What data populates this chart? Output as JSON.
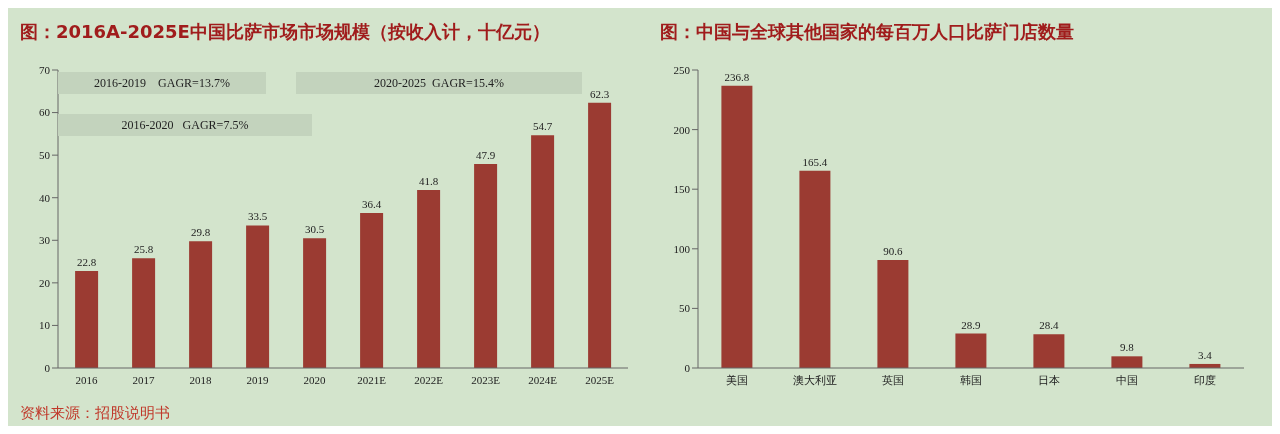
{
  "chart_data": [
    {
      "type": "bar",
      "title": "图：2016A-2025E中国比萨市场市场规模（按收入计，十亿元）",
      "categories": [
        "2016",
        "2017",
        "2018",
        "2019",
        "2020",
        "2021E",
        "2022E",
        "2023E",
        "2024E",
        "2025E"
      ],
      "values": [
        22.8,
        25.8,
        29.8,
        33.5,
        30.5,
        36.4,
        41.8,
        47.9,
        54.7,
        62.3
      ],
      "color": "#9b3b32",
      "ylim": [
        0,
        70
      ],
      "yticks": [
        0,
        10,
        20,
        30,
        40,
        50,
        60,
        70
      ],
      "grid": false,
      "data_labels": true,
      "annotations": [
        "2016-2019    GAGR=13.7%",
        "2020-2025  GAGR=15.4%",
        "2016-2020   GAGR=7.5%",
        "资料来源：招股说明书"
      ]
    },
    {
      "type": "bar",
      "title": "图：中国与全球其他国家的每百万人口比萨门店数量",
      "categories": [
        "美国",
        "澳大利亚",
        "英国",
        "韩国",
        "日本",
        "中国",
        "印度"
      ],
      "values": [
        236.8,
        165.4,
        90.6,
        28.9,
        28.4,
        9.8,
        3.4
      ],
      "color": "#9b3b32",
      "ylim": [
        0,
        250
      ],
      "yticks": [
        0,
        50,
        100,
        150,
        200,
        250
      ],
      "grid": false,
      "data_labels": true
    }
  ]
}
